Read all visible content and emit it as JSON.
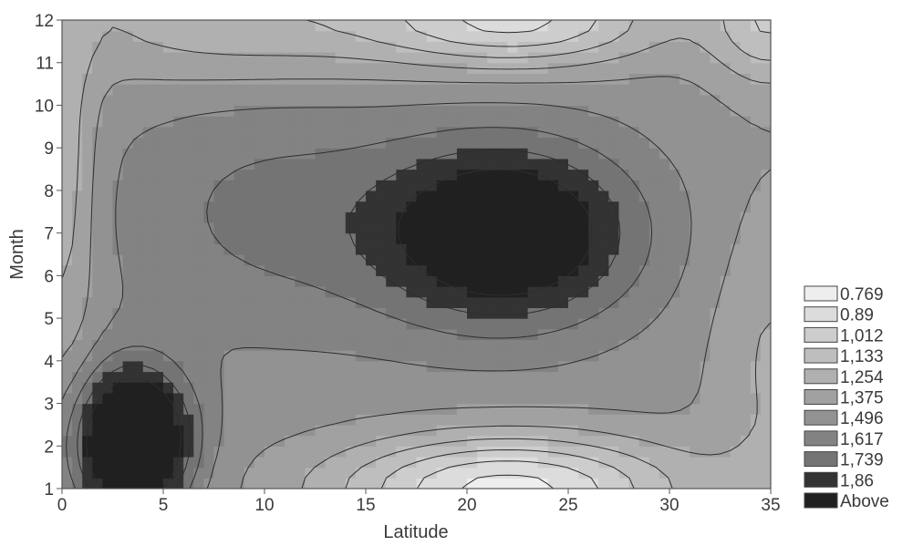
{
  "chart_data": {
    "type": "heatmap",
    "subtype": "filled-contour",
    "title": "",
    "xlabel": "Latitude",
    "ylabel": "Month",
    "xlim": [
      0,
      35
    ],
    "ylim": [
      1,
      12
    ],
    "x_ticks": [
      "0",
      "5",
      "10",
      "15",
      "20",
      "25",
      "30",
      "35"
    ],
    "y_ticks": [
      "1",
      "2",
      "3",
      "4",
      "5",
      "6",
      "7",
      "8",
      "9",
      "10",
      "11",
      "12"
    ],
    "grid": false,
    "legend_position": "right",
    "levels": [
      0.769,
      0.89,
      1.012,
      1.133,
      1.254,
      1.375,
      1.496,
      1.617,
      1.739,
      1.86
    ],
    "legend_labels": [
      "0.769",
      "0.89",
      "1,012",
      "1,133",
      "1,254",
      "1,375",
      "1,496",
      "1,617",
      "1,739",
      "1,86",
      "Above"
    ],
    "legend_colors": [
      "#eeeeee",
      "#dcdcdc",
      "#cdcdcd",
      "#bebebe",
      "#b0b0b0",
      "#a1a1a1",
      "#929292",
      "#838383",
      "#747474",
      "#333333",
      "#202020"
    ],
    "features": [
      {
        "kind": "maximum",
        "region": "lat 19-25, months 5.7-8.2",
        "value_class": "Above"
      },
      {
        "kind": "maximum",
        "region": "lat 1-6.5, months 1-3.5",
        "value_class": "Above"
      },
      {
        "kind": "minimum",
        "region": "lat 18-26, month 1",
        "value_class": "0.769"
      },
      {
        "kind": "minimum",
        "region": "lat 19-25, month 12",
        "value_class": "0.769"
      },
      {
        "kind": "minimum",
        "region": "lat 34-35, month 12",
        "value_class": "0.769"
      }
    ]
  }
}
